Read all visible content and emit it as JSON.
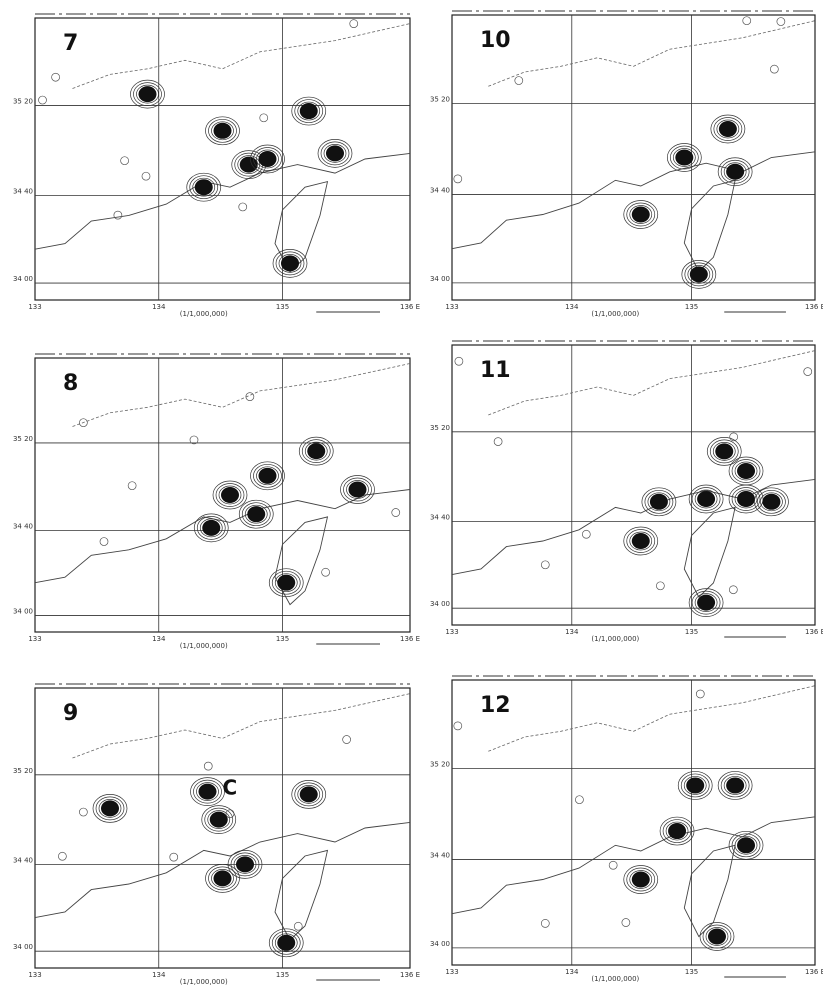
{
  "panels": [
    {
      "label": "7"
    },
    {
      "label": "10"
    },
    {
      "label": "8"
    },
    {
      "label": "11"
    },
    {
      "label": "9"
    },
    {
      "label": "12"
    }
  ],
  "x_labels": [
    "133",
    "134",
    "135",
    "136 E"
  ],
  "y_labels": [
    "34 00",
    "34 40",
    "35 20"
  ],
  "scale": "(1/1,000,000)",
  "annotation": "C"
}
